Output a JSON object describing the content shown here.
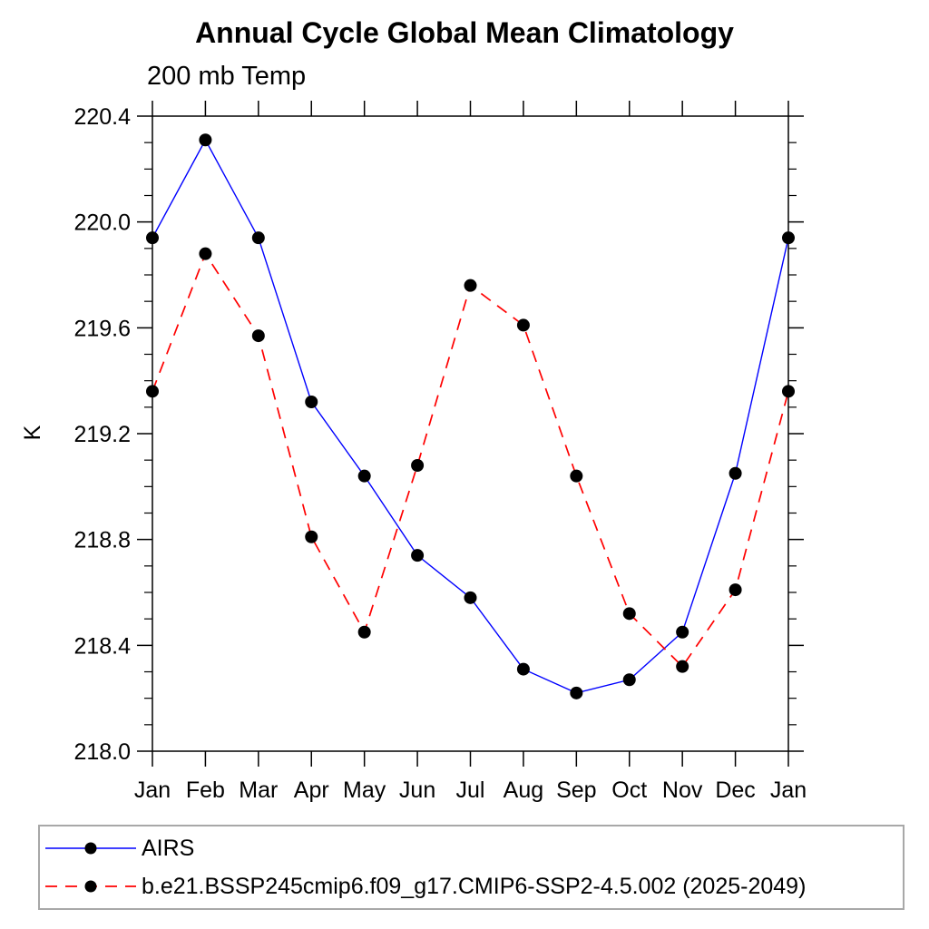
{
  "chart_data": {
    "type": "line",
    "title": "Annual Cycle Global Mean Climatology",
    "subtitle": "200 mb Temp",
    "ylabel": "K",
    "ylim": [
      218.0,
      220.4
    ],
    "ytick_major": [
      218.0,
      218.4,
      218.8,
      219.2,
      219.6,
      220.0,
      220.4
    ],
    "ytick_major_labels": [
      "218.0",
      "218.4",
      "218.8",
      "219.2",
      "219.6",
      "220.0",
      "220.4"
    ],
    "ytick_minor_step": 0.1,
    "categories": [
      "Jan",
      "Feb",
      "Mar",
      "Apr",
      "May",
      "Jun",
      "Jul",
      "Aug",
      "Sep",
      "Oct",
      "Nov",
      "Dec",
      "Jan"
    ],
    "grid": false,
    "legend_position": "bottom-left-box",
    "axis_color": "#000000",
    "marker_color": "#000000",
    "series": [
      {
        "id": "airs",
        "name": "AIRS",
        "color": "#0000ff",
        "line_style": "solid",
        "marker": "filled-circle",
        "values": [
          219.94,
          220.31,
          219.94,
          219.32,
          219.04,
          218.74,
          218.58,
          218.31,
          218.22,
          218.27,
          218.45,
          219.05,
          219.94
        ]
      },
      {
        "id": "model",
        "name": "b.e21.BSSP245cmip6.f09_g17.CMIP6-SSP2-4.5.002 (2025-2049)",
        "color": "#ff0000",
        "line_style": "dashed",
        "marker": "filled-circle",
        "values": [
          219.36,
          219.88,
          219.57,
          218.81,
          218.45,
          219.08,
          219.76,
          219.61,
          219.04,
          218.52,
          218.32,
          218.61,
          219.36
        ]
      }
    ]
  }
}
